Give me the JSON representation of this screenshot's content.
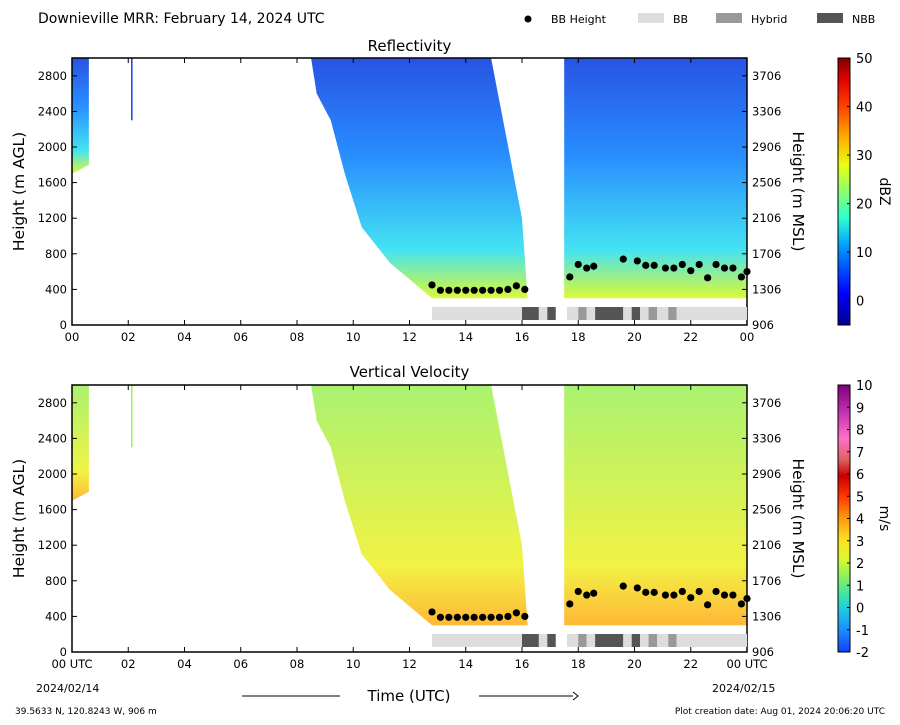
{
  "header": {
    "title": "Downieville MRR:  February 14, 2024 UTC",
    "legend": [
      {
        "label": "BB Height",
        "symbol": "dot",
        "color": "#000000"
      },
      {
        "label": "BB",
        "symbol": "rect",
        "color": "#dddddd"
      },
      {
        "label": "Hybrid",
        "symbol": "rect",
        "color": "#999999"
      },
      {
        "label": "NBB",
        "symbol": "rect",
        "color": "#555555"
      }
    ]
  },
  "footer": {
    "location": "39.5633 N, 120.8243 W, 906 m",
    "creation_date": "Plot creation date: Aug 01, 2024 20:06:20 UTC",
    "xlabel": "Time (UTC)",
    "start_date": "2024/02/14",
    "end_date": "2024/02/15"
  },
  "chart_data": [
    {
      "type": "heatmap",
      "title": "Reflectivity",
      "xlabel": "Time (UTC)",
      "ylabel": "Height (m AGL)",
      "ylabel_right": "Height (m MSL)",
      "x_ticks": [
        "00",
        "02",
        "04",
        "06",
        "08",
        "10",
        "12",
        "14",
        "16",
        "18",
        "20",
        "22",
        "00"
      ],
      "xlim": [
        0,
        24
      ],
      "y_ticks": [
        0,
        400,
        800,
        1200,
        1600,
        2000,
        2400,
        2800
      ],
      "y_ticks_right": [
        906,
        1306,
        1706,
        2106,
        2506,
        2906,
        3306,
        3706
      ],
      "ylim": [
        0,
        3000
      ],
      "colorbar": {
        "label": "dBZ",
        "ticks": [
          0,
          10,
          20,
          30,
          40,
          50
        ],
        "range": [
          -5,
          50
        ]
      },
      "bb_height": {
        "x": [
          12.8,
          13.1,
          13.4,
          13.7,
          14.0,
          14.3,
          14.6,
          14.9,
          15.2,
          15.5,
          15.8,
          16.1,
          17.7,
          18.0,
          18.3,
          18.55,
          19.6,
          20.1,
          20.4,
          20.7,
          21.1,
          21.4,
          21.7,
          22.0,
          22.3,
          22.6,
          22.9,
          23.2,
          23.5,
          23.8,
          24.0
        ],
        "y": [
          450,
          390,
          390,
          390,
          390,
          390,
          390,
          390,
          390,
          400,
          440,
          400,
          540,
          680,
          640,
          660,
          740,
          720,
          670,
          670,
          640,
          640,
          680,
          610,
          680,
          530,
          680,
          640,
          640,
          540,
          600
        ]
      },
      "bb_type": [
        {
          "start": 12.8,
          "end": 16.0,
          "type": "BB"
        },
        {
          "start": 16.0,
          "end": 16.6,
          "type": "NBB"
        },
        {
          "start": 16.6,
          "end": 16.9,
          "type": "BB"
        },
        {
          "start": 16.9,
          "end": 17.2,
          "type": "NBB"
        },
        {
          "start": 17.6,
          "end": 18.0,
          "type": "BB"
        },
        {
          "start": 18.0,
          "end": 18.3,
          "type": "Hybrid"
        },
        {
          "start": 18.3,
          "end": 18.6,
          "type": "BB"
        },
        {
          "start": 18.6,
          "end": 19.6,
          "type": "NBB"
        },
        {
          "start": 19.6,
          "end": 19.9,
          "type": "BB"
        },
        {
          "start": 19.9,
          "end": 20.2,
          "type": "NBB"
        },
        {
          "start": 20.2,
          "end": 20.5,
          "type": "BB"
        },
        {
          "start": 20.5,
          "end": 20.8,
          "type": "Hybrid"
        },
        {
          "start": 20.8,
          "end": 21.2,
          "type": "BB"
        },
        {
          "start": 21.2,
          "end": 21.5,
          "type": "Hybrid"
        },
        {
          "start": 21.5,
          "end": 24.0,
          "type": "BB"
        }
      ]
    },
    {
      "type": "heatmap",
      "title": "Vertical Velocity",
      "xlabel": "Time (UTC)",
      "ylabel": "Height (m AGL)",
      "ylabel_right": "Height (m MSL)",
      "x_ticks": [
        "00 UTC",
        "02",
        "04",
        "06",
        "08",
        "10",
        "12",
        "14",
        "16",
        "18",
        "20",
        "22",
        "00 UTC"
      ],
      "xlim": [
        0,
        24
      ],
      "y_ticks": [
        0,
        400,
        800,
        1200,
        1600,
        2000,
        2400,
        2800
      ],
      "y_ticks_right": [
        906,
        1306,
        1706,
        2106,
        2506,
        2906,
        3306,
        3706
      ],
      "ylim": [
        0,
        3000
      ],
      "colorbar": {
        "label": "m/s",
        "ticks": [
          -2,
          -1,
          0,
          1,
          2,
          3,
          4,
          5,
          6,
          7,
          8,
          9,
          10
        ],
        "range": [
          -2,
          10
        ]
      },
      "bb_height": {
        "x": [
          12.8,
          13.1,
          13.4,
          13.7,
          14.0,
          14.3,
          14.6,
          14.9,
          15.2,
          15.5,
          15.8,
          16.1,
          17.7,
          18.0,
          18.3,
          18.55,
          19.6,
          20.1,
          20.4,
          20.7,
          21.1,
          21.4,
          21.7,
          22.0,
          22.3,
          22.6,
          22.9,
          23.2,
          23.5,
          23.8,
          24.0
        ],
        "y": [
          450,
          390,
          390,
          390,
          390,
          390,
          390,
          390,
          390,
          400,
          440,
          400,
          540,
          680,
          640,
          660,
          740,
          720,
          670,
          670,
          640,
          640,
          680,
          610,
          680,
          530,
          680,
          640,
          640,
          540,
          600
        ]
      },
      "bb_type": [
        {
          "start": 12.8,
          "end": 16.0,
          "type": "BB"
        },
        {
          "start": 16.0,
          "end": 16.6,
          "type": "NBB"
        },
        {
          "start": 16.6,
          "end": 16.9,
          "type": "BB"
        },
        {
          "start": 16.9,
          "end": 17.2,
          "type": "NBB"
        },
        {
          "start": 17.6,
          "end": 18.0,
          "type": "BB"
        },
        {
          "start": 18.0,
          "end": 18.3,
          "type": "Hybrid"
        },
        {
          "start": 18.3,
          "end": 18.6,
          "type": "BB"
        },
        {
          "start": 18.6,
          "end": 19.6,
          "type": "NBB"
        },
        {
          "start": 19.6,
          "end": 19.9,
          "type": "BB"
        },
        {
          "start": 19.9,
          "end": 20.2,
          "type": "NBB"
        },
        {
          "start": 20.2,
          "end": 20.5,
          "type": "BB"
        },
        {
          "start": 20.5,
          "end": 20.8,
          "type": "Hybrid"
        },
        {
          "start": 20.8,
          "end": 21.2,
          "type": "BB"
        },
        {
          "start": 21.2,
          "end": 21.5,
          "type": "Hybrid"
        },
        {
          "start": 21.5,
          "end": 24.0,
          "type": "BB"
        }
      ]
    }
  ]
}
